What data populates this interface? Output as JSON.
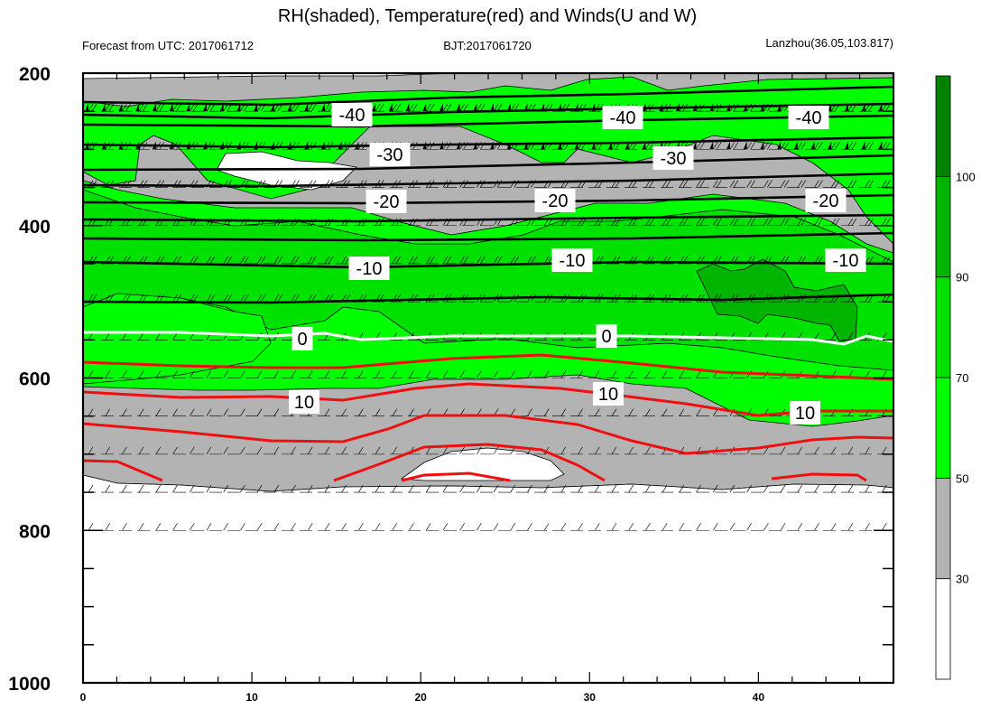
{
  "title": "RH(shaded), Temperature(red) and Winds(U and W)",
  "subtitle_left": "Forecast from UTC: 2017061712",
  "subtitle_center": "BJT:2017061720",
  "subtitle_right": "Lanzhou(36.05,103.817)",
  "chart_data": {
    "type": "contour",
    "x_ticks": [
      "0",
      "10",
      "20",
      "30",
      "40"
    ],
    "y_ticks": [
      "200",
      "400",
      "600",
      "800",
      "1000"
    ],
    "xlim": [
      0,
      48
    ],
    "ylim": [
      200,
      1000
    ],
    "y_inverted": true,
    "colorbar": {
      "labels": [
        "30",
        "50",
        "70",
        "90",
        "100"
      ],
      "colors": [
        "#ffffff",
        "#b3b3b3",
        "#00ff00",
        "#00e100",
        "#00b400",
        "#008200"
      ]
    },
    "temperature_contours": [
      {
        "label": "-40",
        "level": 280,
        "color": "#000000"
      },
      {
        "label": "-30",
        "level": 335,
        "color": "#000000"
      },
      {
        "label": "-20",
        "level": 405,
        "color": "#000000"
      },
      {
        "label": "-10",
        "level": 480,
        "color": "#000000"
      },
      {
        "label": "0",
        "level": 585,
        "color": "#ffffff"
      },
      {
        "label": "10",
        "level": 670,
        "color": "#ff0000"
      }
    ]
  }
}
